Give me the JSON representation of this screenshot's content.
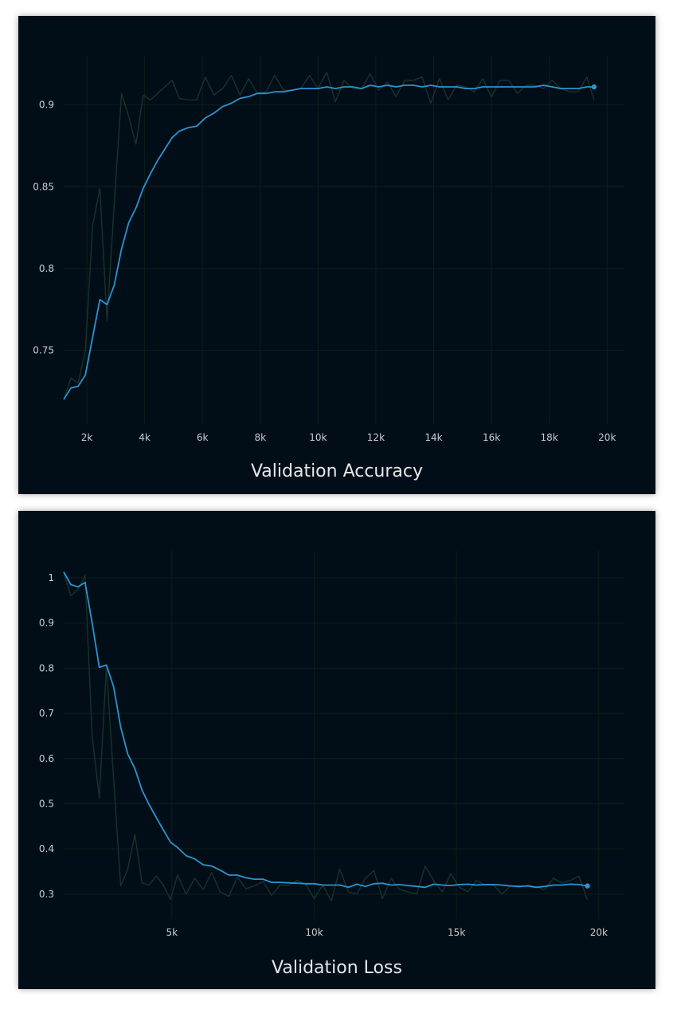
{
  "colors": {
    "background": "#020e17",
    "page": "#ffffff",
    "grid": "#0c1e19",
    "smoothed": "#2a94cf",
    "raw": "#17332e",
    "tick_text": "#c9cdd1",
    "title_text": "#e6e8ea"
  },
  "chart_data": [
    {
      "type": "line",
      "title": "Validation Accuracy",
      "xlabel": "",
      "ylabel": "",
      "xlim": [
        1200,
        20600
      ],
      "ylim": [
        0.705,
        0.93
      ],
      "x_ticks": [
        2000,
        4000,
        6000,
        8000,
        10000,
        12000,
        14000,
        16000,
        18000,
        20000
      ],
      "x_tick_labels": [
        "2k",
        "4k",
        "6k",
        "8k",
        "10k",
        "12k",
        "14k",
        "16k",
        "18k",
        "20k"
      ],
      "y_ticks": [
        0.75,
        0.8,
        0.85,
        0.9
      ],
      "y_tick_labels": [
        "0.75",
        "0.8",
        "0.85",
        "0.9"
      ],
      "grid": true,
      "legend": "none",
      "series": [
        {
          "role": "smoothed",
          "x": [
            1200,
            1450,
            1700,
            1950,
            2200,
            2450,
            2700,
            2950,
            3200,
            3450,
            3700,
            3950,
            4200,
            4450,
            4700,
            4950,
            5200,
            5500,
            5800,
            6100,
            6400,
            6700,
            7000,
            7300,
            7600,
            7900,
            8200,
            8500,
            8800,
            9100,
            9400,
            9700,
            10000,
            10300,
            10600,
            10900,
            11200,
            11500,
            11800,
            12100,
            12400,
            12700,
            13000,
            13300,
            13600,
            13900,
            14200,
            14500,
            14800,
            15100,
            15400,
            15700,
            16000,
            16300,
            16600,
            16900,
            17200,
            17500,
            17800,
            18100,
            18400,
            18700,
            19000,
            19300,
            19550
          ],
          "y": [
            0.72,
            0.727,
            0.728,
            0.735,
            0.758,
            0.781,
            0.778,
            0.79,
            0.812,
            0.828,
            0.837,
            0.849,
            0.858,
            0.866,
            0.873,
            0.88,
            0.884,
            0.886,
            0.887,
            0.892,
            0.895,
            0.899,
            0.901,
            0.904,
            0.905,
            0.907,
            0.907,
            0.908,
            0.908,
            0.909,
            0.91,
            0.91,
            0.91,
            0.911,
            0.91,
            0.911,
            0.911,
            0.91,
            0.912,
            0.911,
            0.912,
            0.911,
            0.912,
            0.912,
            0.911,
            0.912,
            0.911,
            0.911,
            0.911,
            0.91,
            0.91,
            0.911,
            0.911,
            0.911,
            0.911,
            0.911,
            0.911,
            0.911,
            0.912,
            0.911,
            0.91,
            0.91,
            0.91,
            0.911,
            0.911
          ]
        },
        {
          "role": "raw",
          "x": [
            1200,
            1450,
            1700,
            1950,
            2200,
            2450,
            2700,
            2950,
            3200,
            3450,
            3700,
            3950,
            4200,
            4450,
            4700,
            4950,
            5200,
            5500,
            5800,
            6100,
            6400,
            6700,
            7000,
            7300,
            7600,
            7900,
            8200,
            8500,
            8800,
            9100,
            9400,
            9700,
            10000,
            10300,
            10600,
            10900,
            11200,
            11500,
            11800,
            12100,
            12400,
            12700,
            13000,
            13300,
            13600,
            13900,
            14200,
            14500,
            14800,
            15100,
            15400,
            15700,
            16000,
            16300,
            16600,
            16900,
            17200,
            17500,
            17800,
            18100,
            18400,
            18700,
            19000,
            19300,
            19550
          ],
          "y": [
            0.72,
            0.733,
            0.73,
            0.75,
            0.826,
            0.849,
            0.768,
            0.84,
            0.907,
            0.893,
            0.876,
            0.906,
            0.903,
            0.907,
            0.911,
            0.915,
            0.904,
            0.903,
            0.903,
            0.917,
            0.906,
            0.91,
            0.918,
            0.906,
            0.916,
            0.907,
            0.908,
            0.918,
            0.909,
            0.909,
            0.91,
            0.918,
            0.91,
            0.92,
            0.902,
            0.915,
            0.91,
            0.91,
            0.919,
            0.909,
            0.914,
            0.905,
            0.915,
            0.915,
            0.917,
            0.901,
            0.916,
            0.903,
            0.912,
            0.911,
            0.908,
            0.916,
            0.905,
            0.915,
            0.915,
            0.907,
            0.912,
            0.912,
            0.91,
            0.915,
            0.91,
            0.908,
            0.908,
            0.917,
            0.903
          ]
        }
      ]
    },
    {
      "type": "line",
      "title": "Validation Loss",
      "xlabel": "",
      "ylabel": "",
      "xlim": [
        1200,
        20900
      ],
      "ylim": [
        0.245,
        1.06
      ],
      "x_ticks": [
        5000,
        10000,
        15000,
        20000
      ],
      "x_tick_labels": [
        "5k",
        "10k",
        "15k",
        "20k"
      ],
      "y_ticks": [
        0.3,
        0.4,
        0.5,
        0.6,
        0.7,
        0.8,
        0.9,
        1
      ],
      "y_tick_labels": [
        "0.3",
        "0.4",
        "0.5",
        "0.6",
        "0.7",
        "0.8",
        "0.9",
        "1"
      ],
      "grid": true,
      "legend": "none",
      "series": [
        {
          "role": "smoothed",
          "x": [
            1200,
            1450,
            1700,
            1950,
            2200,
            2450,
            2700,
            2950,
            3200,
            3450,
            3700,
            3950,
            4200,
            4450,
            4700,
            4950,
            5200,
            5500,
            5800,
            6100,
            6400,
            6700,
            7000,
            7300,
            7600,
            7900,
            8200,
            8500,
            8800,
            9100,
            9400,
            9700,
            10000,
            10300,
            10600,
            10900,
            11200,
            11500,
            11800,
            12100,
            12400,
            12700,
            13000,
            13300,
            13600,
            13900,
            14200,
            14500,
            14800,
            15100,
            15400,
            15700,
            16000,
            16300,
            16600,
            16900,
            17200,
            17500,
            17800,
            18100,
            18400,
            18700,
            19000,
            19300,
            19600
          ],
          "y": [
            1.013,
            0.985,
            0.98,
            0.99,
            0.9,
            0.802,
            0.807,
            0.76,
            0.67,
            0.61,
            0.578,
            0.53,
            0.498,
            0.47,
            0.442,
            0.415,
            0.403,
            0.385,
            0.378,
            0.365,
            0.362,
            0.353,
            0.342,
            0.342,
            0.336,
            0.333,
            0.333,
            0.326,
            0.326,
            0.325,
            0.324,
            0.323,
            0.323,
            0.32,
            0.32,
            0.32,
            0.315,
            0.322,
            0.317,
            0.323,
            0.324,
            0.32,
            0.321,
            0.319,
            0.317,
            0.315,
            0.322,
            0.32,
            0.319,
            0.321,
            0.322,
            0.32,
            0.321,
            0.321,
            0.32,
            0.318,
            0.317,
            0.318,
            0.315,
            0.317,
            0.32,
            0.32,
            0.322,
            0.321,
            0.318
          ]
        },
        {
          "role": "raw",
          "x": [
            1200,
            1450,
            1700,
            1950,
            2200,
            2450,
            2700,
            2950,
            3200,
            3450,
            3700,
            3950,
            4200,
            4450,
            4700,
            4950,
            5200,
            5500,
            5800,
            6100,
            6400,
            6700,
            7000,
            7300,
            7600,
            7900,
            8200,
            8500,
            8800,
            9100,
            9400,
            9700,
            10000,
            10300,
            10600,
            10900,
            11200,
            11500,
            11800,
            12100,
            12400,
            12700,
            13000,
            13300,
            13600,
            13900,
            14200,
            14500,
            14800,
            15100,
            15400,
            15700,
            16000,
            16300,
            16600,
            16900,
            17200,
            17500,
            17800,
            18100,
            18400,
            18700,
            19000,
            19300,
            19600
          ],
          "y": [
            1.01,
            0.96,
            0.975,
            1.005,
            0.65,
            0.513,
            0.803,
            0.56,
            0.318,
            0.355,
            0.432,
            0.325,
            0.32,
            0.34,
            0.32,
            0.288,
            0.342,
            0.3,
            0.335,
            0.31,
            0.348,
            0.305,
            0.295,
            0.338,
            0.312,
            0.318,
            0.328,
            0.297,
            0.32,
            0.32,
            0.33,
            0.322,
            0.29,
            0.32,
            0.285,
            0.355,
            0.305,
            0.3,
            0.335,
            0.352,
            0.29,
            0.335,
            0.31,
            0.305,
            0.3,
            0.362,
            0.33,
            0.305,
            0.345,
            0.315,
            0.305,
            0.33,
            0.32,
            0.32,
            0.3,
            0.318,
            0.315,
            0.32,
            0.316,
            0.31,
            0.335,
            0.325,
            0.33,
            0.34,
            0.288
          ]
        }
      ]
    }
  ]
}
